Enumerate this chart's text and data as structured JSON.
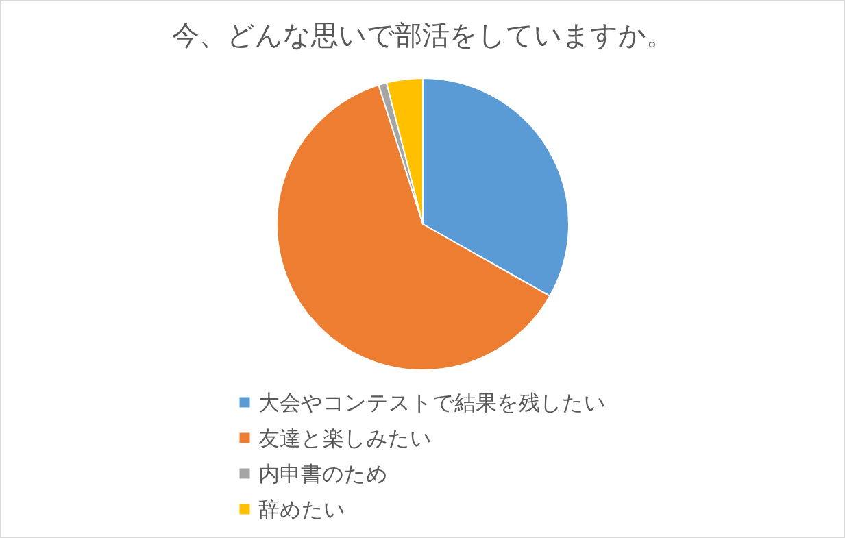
{
  "chart_data": {
    "type": "pie",
    "title": "今、どんな思いで部活をしていますか。",
    "categories": [
      "大会やコンテストで結果を残したい",
      "友達と楽しみたい",
      "内申書のため",
      "辞めたい"
    ],
    "values": [
      33.2,
      61.9,
      0.9,
      4.0
    ],
    "colors": [
      "#5b9bd5",
      "#ed7d31",
      "#a5a5a5",
      "#ffc000"
    ],
    "legend": "bottom"
  }
}
